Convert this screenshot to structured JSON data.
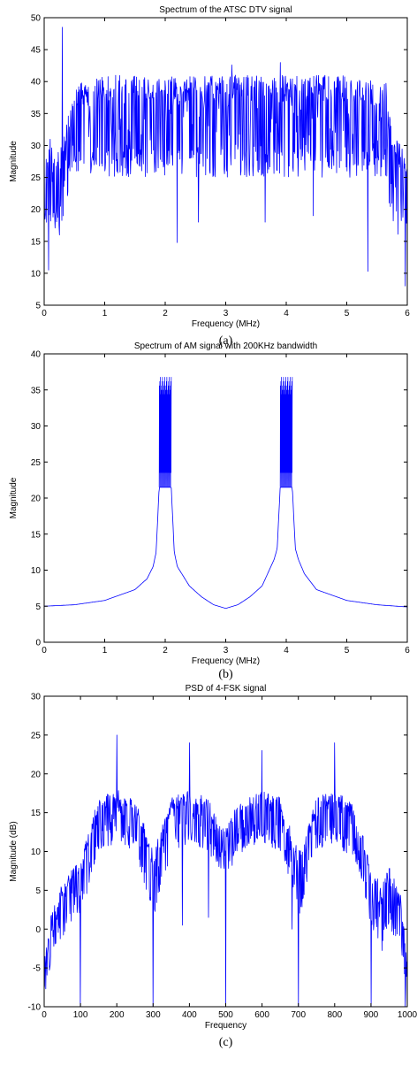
{
  "figure": {
    "colors": {
      "series": "#0000ff",
      "axes": "#000000",
      "background": "#ffffff"
    }
  },
  "chart_data": [
    {
      "type": "line",
      "title": "Spectrum of the ATSC DTV signal",
      "xlabel": "Frequency (MHz)",
      "ylabel": "Magnitude",
      "caption": "(a)",
      "xlim": [
        0,
        6
      ],
      "ylim": [
        5,
        50
      ],
      "xticks": [
        0,
        1,
        2,
        3,
        4,
        5,
        6
      ],
      "yticks": [
        5,
        10,
        15,
        20,
        25,
        30,
        35,
        40,
        45,
        50
      ],
      "grid": false,
      "series": [
        {
          "style": "dense-noise",
          "x": [
            0,
            0.1,
            0.2,
            0.3,
            0.4,
            0.5,
            0.6,
            1.0,
            2.0,
            3.0,
            4.0,
            5.0,
            5.5,
            5.65,
            5.7,
            5.8,
            5.9,
            6.0
          ],
          "upper": [
            30,
            31,
            30,
            31,
            35,
            39,
            40,
            41,
            41,
            41,
            41,
            41,
            40,
            40,
            35,
            31,
            30,
            29
          ],
          "lower": [
            17,
            17,
            16,
            17,
            23,
            26,
            26,
            25,
            25,
            25,
            25,
            25,
            25,
            25,
            20,
            17,
            15,
            14
          ],
          "spikes_up": [
            [
              0.3,
              48.5
            ],
            [
              3.1,
              42.6
            ],
            [
              3.9,
              43
            ]
          ],
          "spikes_down": [
            [
              0.07,
              10.5
            ],
            [
              0.25,
              16
            ],
            [
              2.2,
              14.8
            ],
            [
              2.55,
              18
            ],
            [
              3.65,
              18
            ],
            [
              4.45,
              19
            ],
            [
              5.35,
              10.3
            ],
            [
              5.97,
              8
            ]
          ]
        }
      ]
    },
    {
      "type": "line",
      "title": "Spectrum of AM signal with 200KHz bandwidth",
      "xlabel": "Frequency (MHz)",
      "ylabel": "Magnitude",
      "caption": "(b)",
      "xlim": [
        0,
        6
      ],
      "ylim": [
        0,
        40
      ],
      "xticks": [
        0,
        1,
        2,
        3,
        4,
        5,
        6
      ],
      "yticks": [
        0,
        5,
        10,
        15,
        20,
        25,
        30,
        35,
        40
      ],
      "grid": false,
      "series": [
        {
          "style": "envelope",
          "x": [
            0,
            0.5,
            1.0,
            1.5,
            1.7,
            1.8,
            1.85,
            1.9,
            2.1,
            2.15,
            2.2,
            2.4,
            2.6,
            2.8,
            3.0,
            3.2,
            3.4,
            3.6,
            3.8,
            3.85,
            3.9,
            4.1,
            4.15,
            4.2,
            4.3,
            4.5,
            5.0,
            5.5,
            6.0
          ],
          "y": [
            5,
            5.2,
            5.8,
            7.3,
            8.8,
            10.5,
            12.5,
            21.5,
            21.5,
            12.5,
            10.5,
            7.8,
            6.3,
            5.2,
            4.7,
            5.2,
            6.3,
            7.8,
            11.5,
            13,
            21.5,
            21.5,
            13,
            11.5,
            9.5,
            7.3,
            5.8,
            5.2,
            4.9
          ],
          "bands": [
            [
              1.9,
              2.1,
              21.5,
              36.8
            ],
            [
              3.9,
              4.1,
              21.5,
              36.8
            ]
          ]
        }
      ]
    },
    {
      "type": "line",
      "title": "PSD of 4-FSK signal",
      "xlabel": "Frequency",
      "ylabel": "Magnitude (dB)",
      "caption": "(c)",
      "xlim": [
        0,
        1000
      ],
      "ylim": [
        -10,
        30
      ],
      "xticks": [
        0,
        100,
        200,
        300,
        400,
        500,
        600,
        700,
        800,
        900,
        1000
      ],
      "yticks": [
        -10,
        -5,
        0,
        5,
        10,
        15,
        20,
        25,
        30
      ],
      "grid": false,
      "series": [
        {
          "style": "dense-noise",
          "x": [
            0,
            20,
            50,
            80,
            100,
            130,
            150,
            200,
            250,
            280,
            300,
            330,
            350,
            400,
            450,
            480,
            500,
            530,
            550,
            600,
            650,
            680,
            700,
            730,
            750,
            800,
            850,
            880,
            900,
            930,
            950,
            980,
            1000
          ],
          "upper": [
            -4,
            2,
            6,
            8,
            9,
            14,
            17,
            18,
            17,
            13,
            10,
            14,
            17,
            18,
            17,
            14,
            13,
            16,
            17,
            18,
            17,
            13,
            10,
            14,
            17,
            18,
            16,
            12,
            8,
            6,
            8,
            5,
            -4
          ],
          "lower": [
            -9,
            -4,
            -1,
            1,
            1,
            7,
            10,
            11,
            10,
            5,
            1,
            6,
            10,
            11,
            10,
            8,
            7,
            9,
            10,
            11,
            10,
            6,
            1,
            6,
            10,
            11,
            9,
            5,
            0,
            -3,
            0,
            -2,
            -9
          ],
          "spikes_up": [
            [
              200,
              25
            ],
            [
              400,
              24
            ],
            [
              600,
              23
            ],
            [
              800,
              24
            ]
          ],
          "spikes_down": [
            [
              100,
              -10
            ],
            [
              300,
              -10
            ],
            [
              500,
              -10
            ],
            [
              700,
              -10
            ],
            [
              900,
              -10
            ],
            [
              995,
              -10
            ],
            [
              380,
              0.5
            ],
            [
              452,
              1.5
            ],
            [
              683,
              0
            ]
          ]
        }
      ]
    }
  ]
}
